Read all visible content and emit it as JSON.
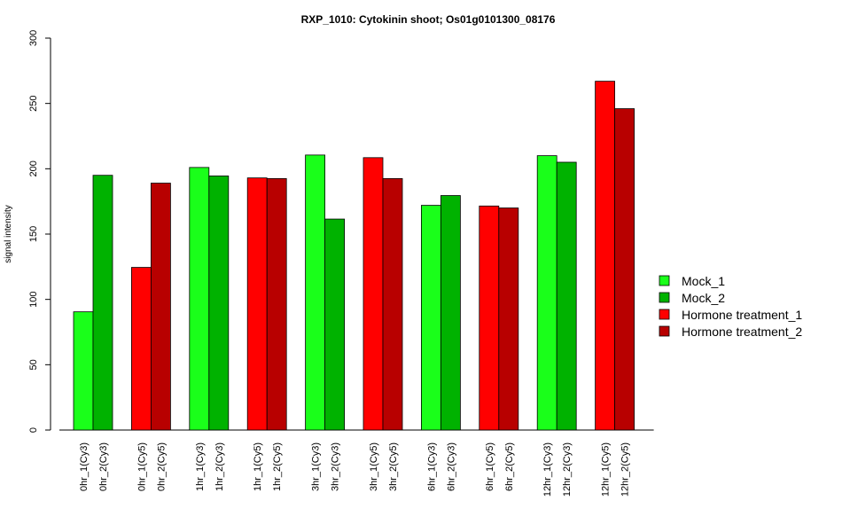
{
  "chart_data": {
    "type": "bar",
    "title": "RXP_1010: Cytokinin shoot; Os01g0101300_08176",
    "xlabel": "",
    "ylabel": "signal intensity",
    "ylim": [
      0,
      300
    ],
    "yticks": [
      "0",
      "50",
      "100",
      "150",
      "200",
      "250",
      "300"
    ],
    "grid": false,
    "legend_position": "right",
    "legend": [
      {
        "name": "Mock_1",
        "color": "#1aff1a"
      },
      {
        "name": "Mock_2",
        "color": "#00b200"
      },
      {
        "name": "Hormone treatment_1",
        "color": "#ff0000"
      },
      {
        "name": "Hormone treatment_2",
        "color": "#b80000"
      }
    ],
    "bars": [
      {
        "label": "0hr_1(Cy3)",
        "value": 90.5,
        "series": 0
      },
      {
        "label": "0hr_2(Cy3)",
        "value": 195,
        "series": 1
      },
      {
        "label": "0hr_1(Cy5)",
        "value": 124.5,
        "series": 2
      },
      {
        "label": "0hr_2(Cy5)",
        "value": 189,
        "series": 3
      },
      {
        "label": "1hr_1(Cy3)",
        "value": 201,
        "series": 0
      },
      {
        "label": "1hr_2(Cy3)",
        "value": 194.5,
        "series": 1
      },
      {
        "label": "1hr_1(Cy5)",
        "value": 193,
        "series": 2
      },
      {
        "label": "1hr_2(Cy5)",
        "value": 192.5,
        "series": 3
      },
      {
        "label": "3hr_1(Cy3)",
        "value": 210.5,
        "series": 0
      },
      {
        "label": "3hr_2(Cy3)",
        "value": 161.5,
        "series": 1
      },
      {
        "label": "3hr_1(Cy5)",
        "value": 208.5,
        "series": 2
      },
      {
        "label": "3hr_2(Cy5)",
        "value": 192.5,
        "series": 3
      },
      {
        "label": "6hr_1(Cy3)",
        "value": 172,
        "series": 0
      },
      {
        "label": "6hr_2(Cy3)",
        "value": 179.5,
        "series": 1
      },
      {
        "label": "6hr_1(Cy5)",
        "value": 171.5,
        "series": 2
      },
      {
        "label": "6hr_2(Cy5)",
        "value": 170,
        "series": 3
      },
      {
        "label": "12hr_1(Cy3)",
        "value": 210,
        "series": 0
      },
      {
        "label": "12hr_2(Cy3)",
        "value": 205,
        "series": 1
      },
      {
        "label": "12hr_1(Cy5)",
        "value": 267,
        "series": 2
      },
      {
        "label": "12hr_2(Cy5)",
        "value": 246,
        "series": 3
      }
    ]
  }
}
